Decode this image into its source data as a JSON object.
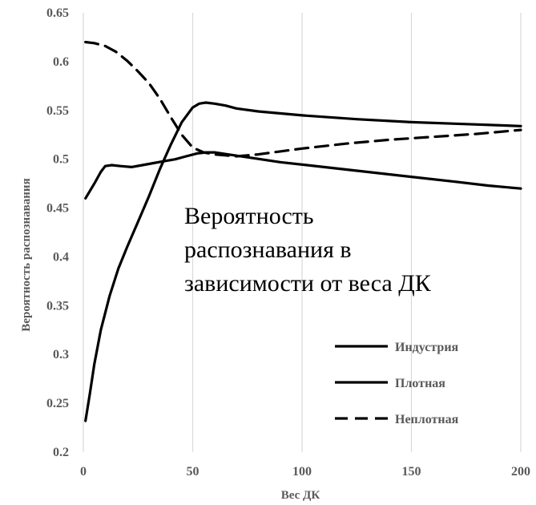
{
  "chart_data": {
    "type": "line",
    "title": "",
    "xlabel": "Вес ДК",
    "ylabel": "Вероятность распознавания",
    "xlim": [
      0,
      200
    ],
    "ylim": [
      0.2,
      0.65
    ],
    "x_ticks": [
      "0",
      "50",
      "100",
      "150",
      "200"
    ],
    "y_ticks": [
      "0.2",
      "0.25",
      "0.3",
      "0.35",
      "0.4",
      "0.45",
      "0.5",
      "0.55",
      "0.6",
      "0.65"
    ],
    "grid": "vertical",
    "legend_position": "bottom-right",
    "annotation": [
      "Вероятность",
      "распознавания в",
      "зависимости от веса ДК"
    ],
    "series": [
      {
        "name": "Индустрия",
        "style": "solid",
        "x": [
          1,
          5,
          8,
          10,
          13,
          17,
          22,
          27,
          32,
          37,
          42,
          47,
          52,
          56,
          60,
          66,
          75,
          90,
          110,
          130,
          150,
          170,
          185,
          200
        ],
        "y": [
          0.46,
          0.475,
          0.487,
          0.493,
          0.494,
          0.493,
          0.492,
          0.494,
          0.496,
          0.498,
          0.5,
          0.503,
          0.506,
          0.507,
          0.507,
          0.505,
          0.502,
          0.497,
          0.492,
          0.487,
          0.482,
          0.477,
          0.473,
          0.47
        ]
      },
      {
        "name": "Плотная",
        "style": "solid",
        "x": [
          1,
          3,
          5,
          8,
          12,
          16,
          20,
          25,
          30,
          35,
          40,
          45,
          50,
          53,
          56,
          60,
          65,
          70,
          80,
          100,
          125,
          150,
          175,
          200
        ],
        "y": [
          0.232,
          0.26,
          0.29,
          0.325,
          0.36,
          0.388,
          0.41,
          0.436,
          0.462,
          0.49,
          0.515,
          0.538,
          0.553,
          0.557,
          0.558,
          0.557,
          0.555,
          0.552,
          0.549,
          0.545,
          0.541,
          0.538,
          0.536,
          0.534
        ]
      },
      {
        "name": "Неплотная",
        "style": "dashed",
        "x": [
          1,
          5,
          10,
          15,
          20,
          25,
          30,
          35,
          40,
          45,
          50,
          55,
          60,
          65,
          70,
          75,
          80,
          90,
          100,
          120,
          140,
          160,
          180,
          200
        ],
        "y": [
          0.62,
          0.619,
          0.616,
          0.61,
          0.601,
          0.59,
          0.578,
          0.562,
          0.543,
          0.525,
          0.512,
          0.507,
          0.505,
          0.504,
          0.503,
          0.504,
          0.505,
          0.508,
          0.511,
          0.516,
          0.52,
          0.523,
          0.526,
          0.53
        ]
      }
    ]
  }
}
